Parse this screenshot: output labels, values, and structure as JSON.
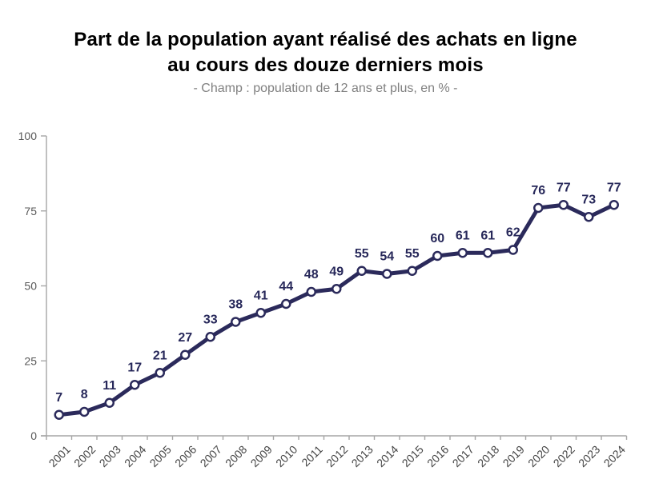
{
  "header": {
    "title_line1": "Part de la population ayant réalisé des achats en ligne",
    "title_line2": "au cours des douze derniers mois",
    "subtitle": "- Champ : population de 12 ans et plus, en % -"
  },
  "colors": {
    "title": "#000000",
    "subtitle": "#808080",
    "axis": "#A6A6A6",
    "y_tick_label": "#595959",
    "x_tick_label": "#444444",
    "line": "#2B2A5B",
    "marker_fill": "#FFFFFF",
    "data_label": "#27285A"
  },
  "chart_data": {
    "type": "line",
    "title": "Part de la population ayant réalisé des achats en ligne au cours des douze derniers mois",
    "subtitle": "- Champ : population de 12 ans et plus, en % -",
    "categories": [
      "2001",
      "2002",
      "2003",
      "2004",
      "2005",
      "2006",
      "2007",
      "2008",
      "2009",
      "2010",
      "2011",
      "2012",
      "2013",
      "2014",
      "2015",
      "2016",
      "2017",
      "2018",
      "2019",
      "2020",
      "2022",
      "2023",
      "2024"
    ],
    "values": [
      7,
      8,
      11,
      17,
      21,
      27,
      33,
      38,
      41,
      44,
      48,
      49,
      55,
      54,
      55,
      60,
      61,
      61,
      62,
      76,
      77,
      73,
      77
    ],
    "xlabel": "",
    "ylabel": "",
    "ylim": [
      0,
      100
    ],
    "yticks": [
      0,
      25,
      50,
      75,
      100
    ],
    "grid": false,
    "legend_position": "none",
    "data_labels": true,
    "marker": "open-circle"
  }
}
